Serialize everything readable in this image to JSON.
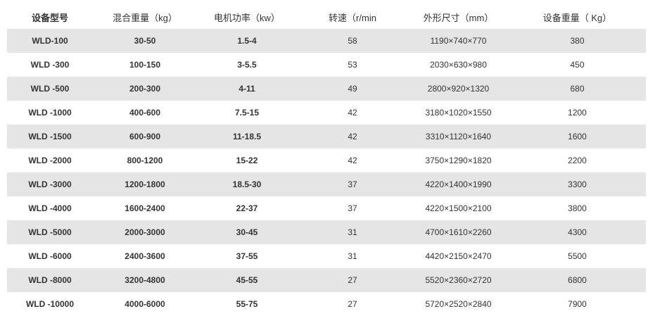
{
  "table": {
    "headers": [
      "设备型号",
      "混合重量（kg）",
      "电机功率（kw）",
      "转速（r/min",
      "外形尺寸（mm）",
      "设备重量（ Kg）"
    ],
    "rows": [
      [
        "WLD-100",
        "30-50",
        "1.5-4",
        "58",
        "1190×740×770",
        "380"
      ],
      [
        "WLD -300",
        "100-150",
        "3-5.5",
        "53",
        "2030×630×980",
        "450"
      ],
      [
        "WLD -500",
        "200-300",
        "4-11",
        "49",
        "2800×920×1320",
        "680"
      ],
      [
        "WLD -1000",
        "400-600",
        "7.5-15",
        "42",
        "3180×1020×1550",
        "1200"
      ],
      [
        "WLD -1500",
        "600-900",
        "11-18.5",
        "42",
        "3310×1120×1640",
        "1600"
      ],
      [
        "WLD -2000",
        "800-1200",
        "15-22",
        "42",
        "3750×1290×1820",
        "2200"
      ],
      [
        "WLD -3000",
        "1200-1800",
        "18.5-30",
        "37",
        "4220×1400×1990",
        "3300"
      ],
      [
        "WLD -4000",
        "1600-2400",
        "22-37",
        "37",
        "4220×1500×2100",
        "3800"
      ],
      [
        "WLD -5000",
        "2000-3000",
        "30-45",
        "31",
        "4700×1610×2260",
        "4300"
      ],
      [
        "WLD -6000",
        "2400-3600",
        "37-55",
        "31",
        "4420×2150×2470",
        "5500"
      ],
      [
        "WLD -8000",
        "3200-4800",
        "45-55",
        "27",
        "5520×2360×2720",
        "6800"
      ],
      [
        "WLD -10000",
        "4000-6000",
        "55-75",
        "27",
        "5720×2520×2840",
        "7900"
      ]
    ]
  },
  "colors": {
    "stripe": "#e5e5e5",
    "text": "#333333"
  }
}
